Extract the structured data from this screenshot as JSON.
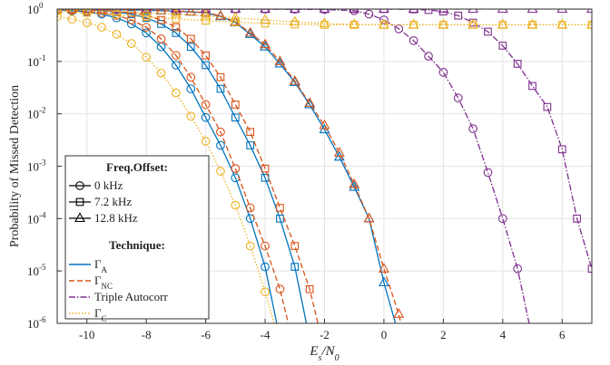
{
  "chart_data": {
    "type": "line",
    "y_label": "Probability of Missed Detection",
    "x_label": [
      {
        "text": "E"
      },
      {
        "text": "s",
        "sub": true
      },
      {
        "text": "/N"
      },
      {
        "text": "0",
        "sub": true
      }
    ],
    "xlim": [
      -11,
      7
    ],
    "xticks": [
      -10,
      -8,
      -6,
      -4,
      -2,
      0,
      2,
      4,
      6
    ],
    "ylim": [
      1e-06,
      1
    ],
    "log_y": true,
    "yticks": [
      {
        "value": 1e-06,
        "label": "10",
        "exponent": "-6"
      },
      {
        "value": 1e-05,
        "label": "10",
        "exponent": "-5"
      },
      {
        "value": 0.0001,
        "label": "10",
        "exponent": "-4"
      },
      {
        "value": 0.001,
        "label": "10",
        "exponent": "-3"
      },
      {
        "value": 0.01,
        "label": "10",
        "exponent": "-2"
      },
      {
        "value": 0.1,
        "label": "10",
        "exponent": "-1"
      },
      {
        "value": 1,
        "label": "10",
        "exponent": "0"
      }
    ],
    "grid": true,
    "legend_position": "lower left",
    "offset_title": "Freq.Offset:",
    "technique_title": "Technique:",
    "offsets": [
      {
        "name": "0 kHz",
        "marker": "circle"
      },
      {
        "name": "7.2 kHz",
        "marker": "square"
      },
      {
        "name": "12.8 kHz",
        "marker": "triangle"
      }
    ],
    "techniques": [
      {
        "name": "Γ",
        "sub": "A",
        "color": "#0072bd",
        "dash": "solid",
        "curves": [
          {
            "x": [
              -11,
              -10.5,
              -10,
              -9.5,
              -9,
              -8.5,
              -8,
              -7.5,
              -7,
              -6.5,
              -6,
              -5.5,
              -5,
              -4.5,
              -4,
              -3.5
            ],
            "values": [
              0.96,
              0.93,
              0.88,
              0.8,
              0.68,
              0.52,
              0.35,
              0.19,
              0.085,
              0.03,
              0.0085,
              0.0025,
              0.0006,
              0.0001,
              1.2e-05,
              5e-07
            ]
          },
          {
            "x": [
              -11,
              -10.5,
              -10,
              -9.5,
              -9,
              -8.5,
              -8,
              -7.5,
              -7,
              -6.5,
              -6,
              -5.5,
              -5,
              -4.5,
              -4,
              -3.5,
              -3,
              -2.5
            ],
            "values": [
              0.98,
              0.97,
              0.96,
              0.93,
              0.88,
              0.8,
              0.68,
              0.52,
              0.35,
              0.19,
              0.085,
              0.03,
              0.0085,
              0.0025,
              0.0006,
              0.0001,
              1.2e-05,
              5e-07
            ]
          },
          {
            "x": [
              -11,
              -10.5,
              -10,
              -9.5,
              -9,
              -8.5,
              -8,
              -7.5,
              -7,
              -6.5,
              -6,
              -5.5,
              -5,
              -4.5,
              -4,
              -3.5,
              -3,
              -2.5,
              -2,
              -1.5,
              -1,
              -0.5,
              0,
              0.5
            ],
            "values": [
              0.99,
              0.99,
              0.98,
              0.98,
              0.97,
              0.96,
              0.95,
              0.93,
              0.91,
              0.88,
              0.85,
              0.72,
              0.55,
              0.33,
              0.19,
              0.09,
              0.04,
              0.015,
              0.005,
              0.0015,
              0.0004,
              0.0001,
              6e-06,
              6e-07
            ]
          }
        ]
      },
      {
        "name": "Γ",
        "sub": "NC",
        "color": "#d95319",
        "dash": "dashed",
        "curves": [
          {
            "x": [
              -11,
              -10.5,
              -10,
              -9.5,
              -9,
              -8.5,
              -8,
              -7.5,
              -7,
              -6.5,
              -6,
              -5.5,
              -5,
              -4.5,
              -4,
              -3.5,
              -3
            ],
            "values": [
              0.97,
              0.95,
              0.91,
              0.85,
              0.76,
              0.62,
              0.45,
              0.27,
              0.13,
              0.05,
              0.015,
              0.0045,
              0.0009,
              0.00016,
              3e-05,
              4.5e-06,
              3e-07
            ]
          },
          {
            "x": [
              -11,
              -10.5,
              -10,
              -9.5,
              -9,
              -8.5,
              -8,
              -7.5,
              -7,
              -6.5,
              -6,
              -5.5,
              -5,
              -4.5,
              -4,
              -3.5,
              -3,
              -2.5,
              -2
            ],
            "values": [
              0.99,
              0.98,
              0.97,
              0.95,
              0.91,
              0.85,
              0.76,
              0.62,
              0.45,
              0.27,
              0.13,
              0.05,
              0.015,
              0.0045,
              0.0009,
              0.00016,
              3e-05,
              4.5e-06,
              3e-07
            ]
          },
          {
            "x": [
              -11,
              -10.5,
              -10,
              -9.5,
              -9,
              -8.5,
              -8,
              -7.5,
              -7,
              -6.5,
              -6,
              -5.5,
              -5,
              -4.5,
              -4,
              -3.5,
              -3,
              -2.5,
              -2,
              -1.5,
              -1,
              -0.5,
              0,
              0.5,
              1
            ],
            "values": [
              1,
              0.99,
              0.99,
              0.98,
              0.98,
              0.97,
              0.96,
              0.94,
              0.92,
              0.89,
              0.86,
              0.74,
              0.57,
              0.35,
              0.21,
              0.1,
              0.042,
              0.016,
              0.006,
              0.0018,
              0.00045,
              0.0001,
              1.1e-05,
              1.5e-06,
              1e-07
            ]
          }
        ]
      },
      {
        "name": "Triple Autocorr",
        "color": "#7e2f8e",
        "dash": "dashdot",
        "curves": [
          {
            "x": [
              -11,
              -10,
              -9,
              -8,
              -7,
              -6,
              -5,
              -4,
              -3,
              -2,
              -1,
              -0.5,
              0,
              0.5,
              1,
              1.5,
              2,
              2.5,
              3,
              3.5,
              4,
              4.5,
              5
            ],
            "values": [
              1,
              1,
              1,
              1,
              1,
              1,
              1,
              1,
              0.99,
              0.98,
              0.93,
              0.8,
              0.62,
              0.42,
              0.25,
              0.126,
              0.062,
              0.02,
              0.0052,
              0.00076,
              0.0001,
              1.1e-05,
              5e-07
            ]
          },
          {
            "x": [
              -11,
              -10,
              -9,
              -8,
              -7,
              -6,
              -5,
              -4,
              -3,
              -2,
              -1,
              0,
              1,
              1.5,
              2,
              2.5,
              3,
              3.5,
              4,
              4.5,
              5,
              5.5,
              6,
              6.5,
              7
            ],
            "values": [
              1,
              1,
              1,
              1,
              1,
              1,
              1,
              1,
              1,
              1,
              1,
              1,
              0.99,
              0.96,
              0.9,
              0.75,
              0.55,
              0.37,
              0.2,
              0.09,
              0.034,
              0.0135,
              0.0021,
              0.0001,
              1.1e-05
            ]
          },
          {
            "x": [
              -11,
              -10,
              -9,
              -8,
              -7,
              -6,
              -5,
              -4,
              -3,
              -2,
              -1,
              0,
              1,
              2,
              3,
              4,
              5,
              6,
              7
            ],
            "values": [
              1,
              1,
              1,
              1,
              1,
              1,
              1,
              1,
              1,
              1,
              1,
              1,
              1,
              1,
              1,
              1,
              1,
              1,
              1
            ]
          }
        ]
      },
      {
        "name": "Γ",
        "sub": "C",
        "color": "#edb120",
        "dash": "dotted",
        "curves": [
          {
            "x": [
              -11,
              -10.5,
              -10,
              -9.5,
              -9,
              -8.5,
              -8,
              -7.5,
              -7,
              -6.5,
              -6,
              -5.5,
              -5,
              -4.5,
              -4,
              -3.5
            ],
            "values": [
              0.72,
              0.64,
              0.55,
              0.45,
              0.33,
              0.22,
              0.12,
              0.06,
              0.025,
              0.009,
              0.003,
              0.0008,
              0.00018,
              3e-05,
              4e-06,
              4e-07
            ]
          },
          {
            "x": [
              -11,
              -10,
              -9,
              -8,
              -7,
              -6,
              -5,
              -4,
              -3,
              -2,
              -1,
              0,
              1,
              2,
              3,
              4,
              5,
              6,
              7
            ],
            "values": [
              0.92,
              0.85,
              0.78,
              0.71,
              0.65,
              0.6,
              0.56,
              0.53,
              0.51,
              0.5,
              0.5,
              0.5,
              0.5,
              0.5,
              0.5,
              0.5,
              0.5,
              0.5,
              0.5
            ]
          },
          {
            "x": [
              -11,
              -10,
              -9,
              -8,
              -7,
              -6,
              -5,
              -4,
              -3,
              -2,
              -1,
              0,
              1,
              2,
              3,
              4,
              5,
              6,
              7
            ],
            "values": [
              0.97,
              0.94,
              0.9,
              0.85,
              0.8,
              0.74,
              0.68,
              0.62,
              0.57,
              0.53,
              0.51,
              0.5,
              0.5,
              0.5,
              0.5,
              0.5,
              0.5,
              0.5,
              0.5
            ]
          }
        ]
      }
    ]
  }
}
